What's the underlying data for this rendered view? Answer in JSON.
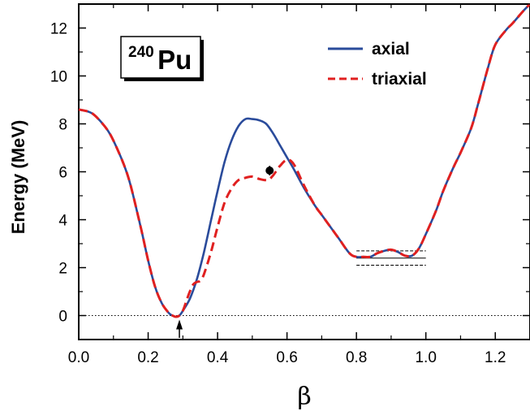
{
  "chart_data": {
    "type": "line",
    "xlabel": "β",
    "ylabel": "Energy (MeV)",
    "xlim": [
      0.0,
      1.3
    ],
    "ylim": [
      -1.0,
      13.0
    ],
    "x_ticks": [
      "0.0",
      "0.2",
      "0.4",
      "0.6",
      "0.8",
      "1.0",
      "1.2"
    ],
    "y_ticks": [
      "0",
      "2",
      "4",
      "6",
      "8",
      "10",
      "12"
    ],
    "nucleus": {
      "mass": "240",
      "symbol": "Pu"
    },
    "legend_position": "top-right",
    "series": [
      {
        "name": "axial",
        "color": "#2a4b9b",
        "style": "solid",
        "x": [
          0.0,
          0.03,
          0.05,
          0.08,
          0.1,
          0.13,
          0.15,
          0.18,
          0.2,
          0.22,
          0.24,
          0.26,
          0.27,
          0.28,
          0.29,
          0.3,
          0.32,
          0.34,
          0.36,
          0.38,
          0.4,
          0.42,
          0.44,
          0.46,
          0.48,
          0.5,
          0.52,
          0.54,
          0.56,
          0.58,
          0.6,
          0.62,
          0.65,
          0.68,
          0.7,
          0.72,
          0.75,
          0.78,
          0.8,
          0.82,
          0.84,
          0.86,
          0.88,
          0.9,
          0.92,
          0.94,
          0.96,
          0.98,
          1.0,
          1.03,
          1.05,
          1.08,
          1.1,
          1.13,
          1.15,
          1.18,
          1.2,
          1.23,
          1.25,
          1.28,
          1.3
        ],
        "y": [
          8.6,
          8.5,
          8.3,
          7.8,
          7.3,
          6.3,
          5.4,
          3.6,
          2.3,
          1.2,
          0.5,
          0.1,
          0.0,
          -0.05,
          0.0,
          0.2,
          0.7,
          1.5,
          2.6,
          3.9,
          5.2,
          6.4,
          7.3,
          7.9,
          8.2,
          8.2,
          8.15,
          8.0,
          7.6,
          7.1,
          6.6,
          6.1,
          5.3,
          4.6,
          4.2,
          3.8,
          3.2,
          2.6,
          2.45,
          2.45,
          2.45,
          2.6,
          2.7,
          2.75,
          2.65,
          2.5,
          2.5,
          2.8,
          3.4,
          4.4,
          5.2,
          6.2,
          6.8,
          7.8,
          8.8,
          10.4,
          11.3,
          11.9,
          12.2,
          12.7,
          13.0
        ]
      },
      {
        "name": "triaxial",
        "color": "#e02020",
        "style": "dashed",
        "x": [
          0.0,
          0.03,
          0.05,
          0.08,
          0.1,
          0.13,
          0.15,
          0.18,
          0.2,
          0.22,
          0.24,
          0.26,
          0.27,
          0.28,
          0.29,
          0.3,
          0.31,
          0.32,
          0.33,
          0.34,
          0.35,
          0.36,
          0.38,
          0.4,
          0.42,
          0.44,
          0.46,
          0.48,
          0.5,
          0.52,
          0.54,
          0.55,
          0.56,
          0.57,
          0.58,
          0.6,
          0.62,
          0.65,
          0.68,
          0.7,
          0.72,
          0.75,
          0.78,
          0.8,
          0.82,
          0.84,
          0.86,
          0.88,
          0.9,
          0.92,
          0.94,
          0.96,
          0.98,
          1.0,
          1.03,
          1.05,
          1.08,
          1.1,
          1.13,
          1.15,
          1.18,
          1.2,
          1.23,
          1.25,
          1.28,
          1.3
        ],
        "y": [
          8.6,
          8.5,
          8.3,
          7.8,
          7.3,
          6.3,
          5.4,
          3.6,
          2.3,
          1.2,
          0.5,
          0.1,
          0.0,
          -0.05,
          0.0,
          0.2,
          0.6,
          1.0,
          1.3,
          1.4,
          1.45,
          1.7,
          2.6,
          3.7,
          4.7,
          5.3,
          5.65,
          5.75,
          5.8,
          5.7,
          5.65,
          5.7,
          5.85,
          6.05,
          6.25,
          6.5,
          6.3,
          5.4,
          4.6,
          4.2,
          3.8,
          3.2,
          2.6,
          2.45,
          2.45,
          2.45,
          2.6,
          2.7,
          2.75,
          2.65,
          2.5,
          2.5,
          2.8,
          3.4,
          4.4,
          5.2,
          6.2,
          6.8,
          7.8,
          8.8,
          10.4,
          11.3,
          11.9,
          12.2,
          12.7,
          13.0
        ]
      }
    ],
    "experimental_point": {
      "x": 0.55,
      "y": 6.05,
      "yerr": 0.2
    },
    "zero_reference_line": 0.0,
    "level_bar_x": [
      0.8,
      1.0
    ],
    "level_lines_solid": [
      2.4
    ],
    "level_lines_dashed": [
      2.7,
      2.1
    ],
    "arrow_at_x": 0.29
  }
}
